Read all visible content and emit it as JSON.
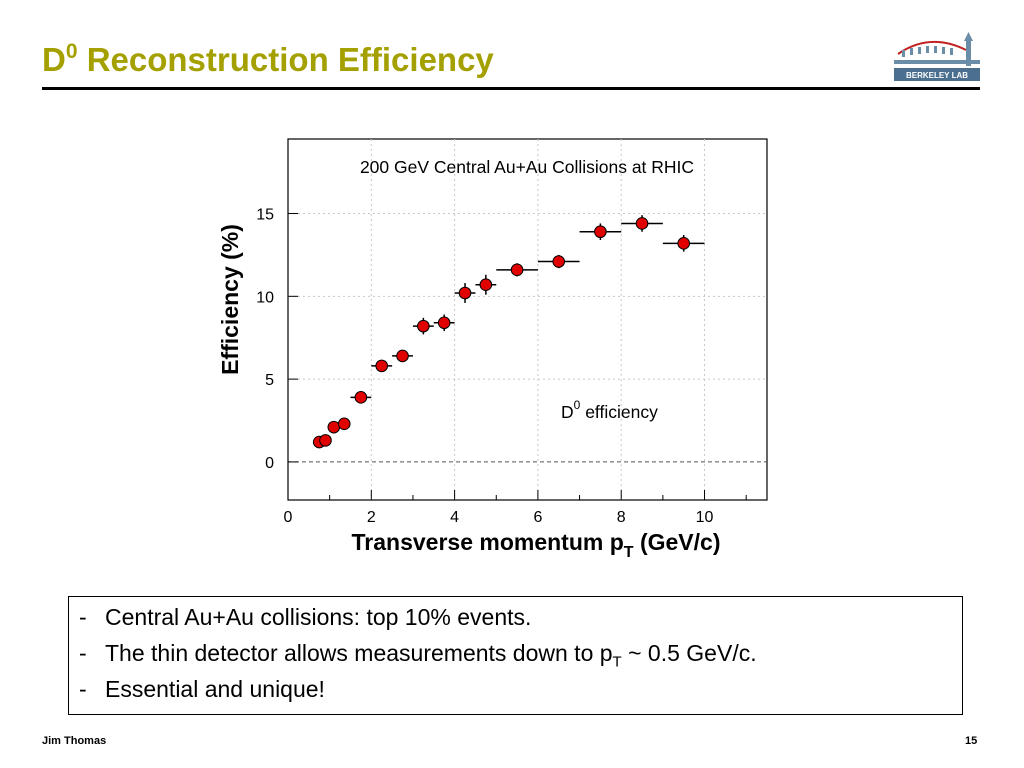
{
  "slide": {
    "title_symbol": "D",
    "title_superscript": "0",
    "title_rest": " Reconstruction Efficiency",
    "logo_text": "BERKELEY LAB",
    "footer_author": "Jim Thomas",
    "page_number": "15"
  },
  "notes": [
    {
      "dash": "-",
      "text": "Central Au+Au collisions: top 10% events."
    },
    {
      "dash": "-",
      "text": "The thin detector allows measurements down to p",
      "sub": "T",
      "after": " ~ 0.5 GeV/c."
    },
    {
      "dash": "-",
      "text": "Essential and unique!"
    }
  ],
  "chart_data": {
    "type": "scatter",
    "title": "200 GeV Central Au+Au Collisions at RHIC",
    "xlabel_main": "Transverse momentum p",
    "xlabel_sub": "T",
    "xlabel_tail": " (GeV/c)",
    "ylabel": "Efficiency (%)",
    "xlim": [
      0,
      11.5
    ],
    "ylim": [
      -2.3,
      19.5
    ],
    "xticks": [
      0,
      2,
      4,
      6,
      8,
      10
    ],
    "yticks": [
      0,
      5,
      10,
      15
    ],
    "grid": true,
    "reference_line_y": 0,
    "legend_symbol": "D",
    "legend_superscript": "0",
    "legend_label": " efficiency",
    "legend_position": "right-center",
    "marker_color": "#e00000",
    "series": [
      {
        "points": [
          {
            "x": 0.75,
            "y": 1.2,
            "xerr": 0.0,
            "yerr": 0.2
          },
          {
            "x": 0.9,
            "y": 1.3,
            "xerr": 0.0,
            "yerr": 0.2
          },
          {
            "x": 1.1,
            "y": 2.1,
            "xerr": 0.0,
            "yerr": 0.2
          },
          {
            "x": 1.35,
            "y": 2.3,
            "xerr": 0.0,
            "yerr": 0.2
          },
          {
            "x": 1.75,
            "y": 3.9,
            "xerr": 0.25,
            "yerr": 0.3
          },
          {
            "x": 2.25,
            "y": 5.8,
            "xerr": 0.25,
            "yerr": 0.3
          },
          {
            "x": 2.75,
            "y": 6.4,
            "xerr": 0.25,
            "yerr": 0.35
          },
          {
            "x": 3.25,
            "y": 8.2,
            "xerr": 0.25,
            "yerr": 0.5
          },
          {
            "x": 3.75,
            "y": 8.4,
            "xerr": 0.25,
            "yerr": 0.5
          },
          {
            "x": 4.25,
            "y": 10.2,
            "xerr": 0.25,
            "yerr": 0.6
          },
          {
            "x": 4.75,
            "y": 10.7,
            "xerr": 0.25,
            "yerr": 0.6
          },
          {
            "x": 5.5,
            "y": 11.6,
            "xerr": 0.5,
            "yerr": 0.4
          },
          {
            "x": 6.5,
            "y": 12.1,
            "xerr": 0.5,
            "yerr": 0.4
          },
          {
            "x": 7.5,
            "y": 13.9,
            "xerr": 0.5,
            "yerr": 0.5
          },
          {
            "x": 8.5,
            "y": 14.4,
            "xerr": 0.5,
            "yerr": 0.5
          },
          {
            "x": 9.5,
            "y": 13.2,
            "xerr": 0.5,
            "yerr": 0.5
          }
        ]
      }
    ]
  }
}
